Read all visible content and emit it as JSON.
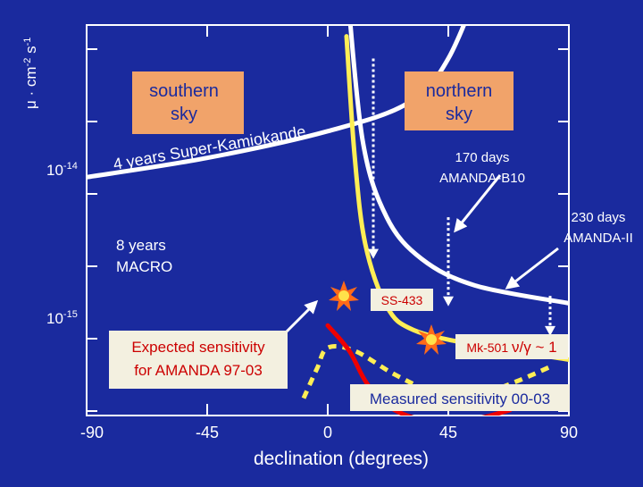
{
  "chart_data": {
    "type": "line",
    "ylabel_main": "μ · cm",
    "ylabel_exp1": "-2",
    "ylabel_unit": " s",
    "ylabel_exp2": "-1",
    "xlabel": "declination (degrees)",
    "xlim": [
      -90,
      90
    ],
    "x_ticks": [
      {
        "value": -90,
        "label": "-90"
      },
      {
        "value": -45,
        "label": "-45"
      },
      {
        "value": 0,
        "label": "0"
      },
      {
        "value": 45,
        "label": "45"
      },
      {
        "value": 90,
        "label": "90"
      }
    ],
    "y_scale": "log",
    "y_ticks": [
      {
        "exp": -14,
        "base": "10",
        "sup": "-14"
      },
      {
        "exp": -15,
        "base": "10",
        "sup": "-15"
      }
    ],
    "series": [
      {
        "key": "superk",
        "color": "#ffffff",
        "dashed": false,
        "points": [
          [
            -90,
            -14.05
          ],
          [
            -45,
            -13.92
          ],
          [
            0,
            -13.74
          ],
          [
            30,
            -13.55
          ],
          [
            45,
            -13.25
          ],
          [
            60,
            -12.6
          ]
        ]
      },
      {
        "key": "b10",
        "color": "#ffffff",
        "dashed": false,
        "points": [
          [
            7,
            -12.72
          ],
          [
            13,
            -13.8
          ],
          [
            22,
            -14.32
          ],
          [
            35,
            -14.6
          ],
          [
            55,
            -14.78
          ],
          [
            90,
            -14.9
          ]
        ]
      },
      {
        "key": "amanda2",
        "color": "#ffee55",
        "dashed": false,
        "points": [
          [
            7,
            -13.1
          ],
          [
            10,
            -13.9
          ],
          [
            14,
            -14.5
          ],
          [
            22,
            -14.92
          ],
          [
            32,
            -15.08
          ],
          [
            55,
            -15.18
          ],
          [
            90,
            -15.28
          ]
        ]
      },
      {
        "key": "dashed",
        "color": "#ffee55",
        "dashed": true,
        "points": [
          [
            -9,
            -15.54
          ],
          [
            -4,
            -15.34
          ],
          [
            0,
            -15.2
          ],
          [
            10,
            -15.22
          ],
          [
            25,
            -15.38
          ],
          [
            40,
            -15.5
          ],
          [
            55,
            -15.52
          ],
          [
            70,
            -15.43
          ],
          [
            84,
            -15.32
          ]
        ]
      },
      {
        "key": "measured",
        "color": "#ee0000",
        "dashed": false,
        "points": [
          [
            0,
            -15.05
          ],
          [
            8,
            -15.22
          ],
          [
            15,
            -15.45
          ],
          [
            25,
            -15.62
          ],
          [
            40,
            -15.7
          ],
          [
            55,
            -15.68
          ],
          [
            68,
            -15.62
          ]
        ]
      }
    ],
    "drop_arrows": [
      {
        "x": 17,
        "y_top": -13.25,
        "y_bottom": -14.6
      },
      {
        "x": 45,
        "y_top": -14.32,
        "y_bottom": -14.92
      },
      {
        "x": 83,
        "y_top": -14.85,
        "y_bottom": -15.12
      }
    ],
    "labels": {
      "southern_sky": [
        "southern",
        "sky"
      ],
      "northern_sky": [
        "northern",
        "sky"
      ],
      "superk": "4 years Super-Kamiokande",
      "b10": [
        "170 days",
        "AMANDA-B10"
      ],
      "amanda2": [
        "230 days",
        "AMANDA-II"
      ],
      "macro": [
        "8 years",
        "MACRO"
      ],
      "ss433": "SS-433",
      "mk501_name": "Mk-501 ",
      "mk501_ratio": "ν/γ ~ 1",
      "expected": [
        "Expected sensitivity",
        "for AMANDA 97-03"
      ],
      "measured": "Measured sensitivity 00-03"
    },
    "colors": {
      "background": "#1a2a9e",
      "label_box": "#f1a36a",
      "label_box_text": "#1a2a9e",
      "note_box": "#f3f0e0",
      "white_curve": "#ffffff",
      "yellow_curve": "#ffee55",
      "red_curve": "#ee0000"
    }
  }
}
